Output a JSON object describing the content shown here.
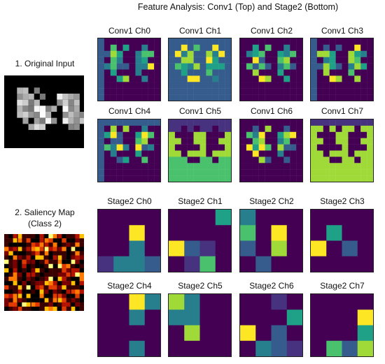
{
  "title": "Feature Analysis: Conv1 (Top) and Stage2 (Bottom)",
  "left": {
    "original_label": "1. Original Input",
    "saliency_label_line1": "2. Saliency Map",
    "saliency_label_line2": "(Class 2)"
  },
  "conv1_titles": [
    "Conv1 Ch0",
    "Conv1 Ch1",
    "Conv1 Ch2",
    "Conv1 Ch3",
    "Conv1 Ch4",
    "Conv1 Ch5",
    "Conv1 Ch6",
    "Conv1 Ch7"
  ],
  "stage2_titles": [
    "Stage2 Ch0",
    "Stage2 Ch1",
    "Stage2 Ch2",
    "Stage2 Ch3",
    "Stage2 Ch4",
    "Stage2 Ch5",
    "Stage2 Ch6",
    "Stage2 Ch7"
  ],
  "colormap": "viridis",
  "stage2_maps": [
    [
      [
        0,
        0,
        0,
        0
      ],
      [
        0,
        0,
        1,
        0
      ],
      [
        0,
        0,
        0.4,
        0
      ],
      [
        0.2,
        0.45,
        0.45,
        0.3
      ]
    ],
    [
      [
        0,
        0,
        0,
        0.6
      ],
      [
        0,
        0,
        0,
        0
      ],
      [
        1,
        0.3,
        0.2,
        0
      ],
      [
        0,
        0.2,
        0.7,
        0
      ]
    ],
    [
      [
        0.4,
        0,
        0,
        0
      ],
      [
        0.7,
        0,
        1,
        0
      ],
      [
        0.3,
        0,
        0.8,
        0
      ],
      [
        0,
        0.3,
        0,
        0
      ]
    ],
    [
      [
        0,
        0,
        0,
        0
      ],
      [
        0,
        0.5,
        0,
        0
      ],
      [
        1,
        0,
        0.3,
        0
      ],
      [
        0,
        0,
        0,
        0
      ]
    ],
    [
      [
        0,
        0,
        1,
        0.4
      ],
      [
        0,
        0,
        0.45,
        0
      ],
      [
        0,
        0,
        0,
        0
      ],
      [
        0,
        0,
        0.4,
        0
      ]
    ],
    [
      [
        0.9,
        0.4,
        0,
        0
      ],
      [
        0.45,
        0.45,
        0,
        0
      ],
      [
        0,
        0.9,
        0,
        0
      ],
      [
        0,
        0,
        0,
        0
      ]
    ],
    [
      [
        0,
        0,
        0.2,
        0
      ],
      [
        0,
        0,
        0,
        0.6
      ],
      [
        1,
        0,
        0.3,
        0
      ],
      [
        0,
        0.4,
        0.3,
        0.2
      ]
    ],
    [
      [
        0,
        0,
        0,
        0
      ],
      [
        0,
        0,
        0,
        0.95
      ],
      [
        0,
        0,
        0,
        0.6
      ],
      [
        0,
        0.7,
        0.35,
        0.9
      ]
    ]
  ]
}
